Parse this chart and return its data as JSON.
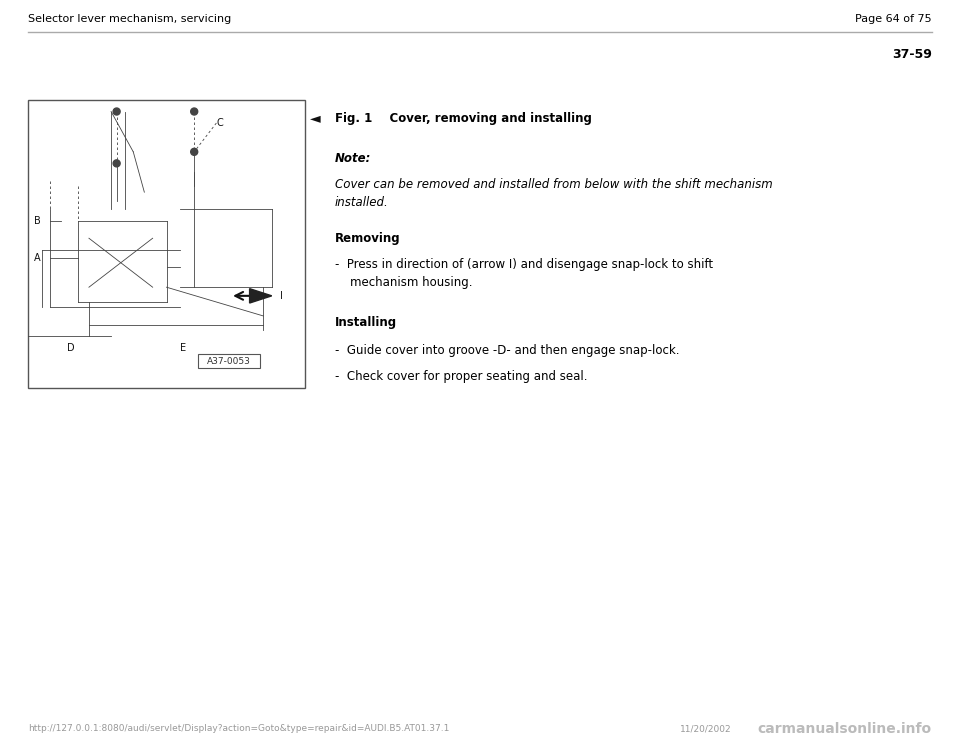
{
  "background_color": "#ffffff",
  "page_width": 9.6,
  "page_height": 7.42,
  "header_left": "Selector lever mechanism, servicing",
  "header_right": "Page 64 of 75",
  "section_number": "37-59",
  "fig_title_bold": "Fig. 1",
  "fig_title_rest": "     Cover, removing and installing",
  "note_label": "Note:",
  "note_text": "Cover can be removed and installed from below with the shift mechanism\ninstalled.",
  "removing_label": "Removing",
  "removing_bullet": "-  Press in direction of (arrow I) and disengage snap-lock to shift\n    mechanism housing.",
  "installing_label": "Installing",
  "installing_bullet1": "-  Guide cover into groove -D- and then engage snap-lock.",
  "installing_bullet2": "-  Check cover for proper seating and seal.",
  "footer_url": "http://127.0.0.1:8080/audi/servlet/Display?action=Goto&type=repair&id=AUDI.B5.AT01.37.1",
  "footer_date": "11/20/2002",
  "footer_logo": "carmanualsonline.info",
  "text_color": "#000000",
  "gray": "#777777",
  "light_gray": "#999999",
  "header_fontsize": 8.0,
  "body_fontsize": 8.5,
  "section_fontsize": 9.0,
  "footer_fontsize": 6.5,
  "logo_fontsize": 10.0
}
